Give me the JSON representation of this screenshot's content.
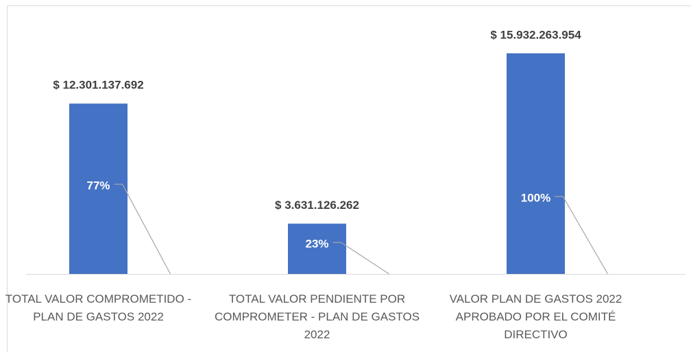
{
  "chart_data": {
    "type": "bar",
    "categories": [
      "TOTAL VALOR COMPROMETIDO - PLAN DE GASTOS 2022",
      "TOTAL VALOR PENDIENTE POR COMPROMETER - PLAN DE GASTOS 2022",
      "VALOR PLAN DE GASTOS 2022 APROBADO POR EL COMITÉ DIRECTIVO"
    ],
    "values": [
      12301137692,
      3631126262,
      15932263954
    ],
    "value_labels": [
      "$ 12.301.137.692",
      "$ 3.631.126.262",
      "$ 15.932.263.954"
    ],
    "shares": [
      77,
      23,
      100
    ],
    "share_labels": [
      "77%",
      "23%",
      "100%"
    ],
    "color": "#4472c4",
    "ylim": [
      0,
      18000000000
    ]
  }
}
